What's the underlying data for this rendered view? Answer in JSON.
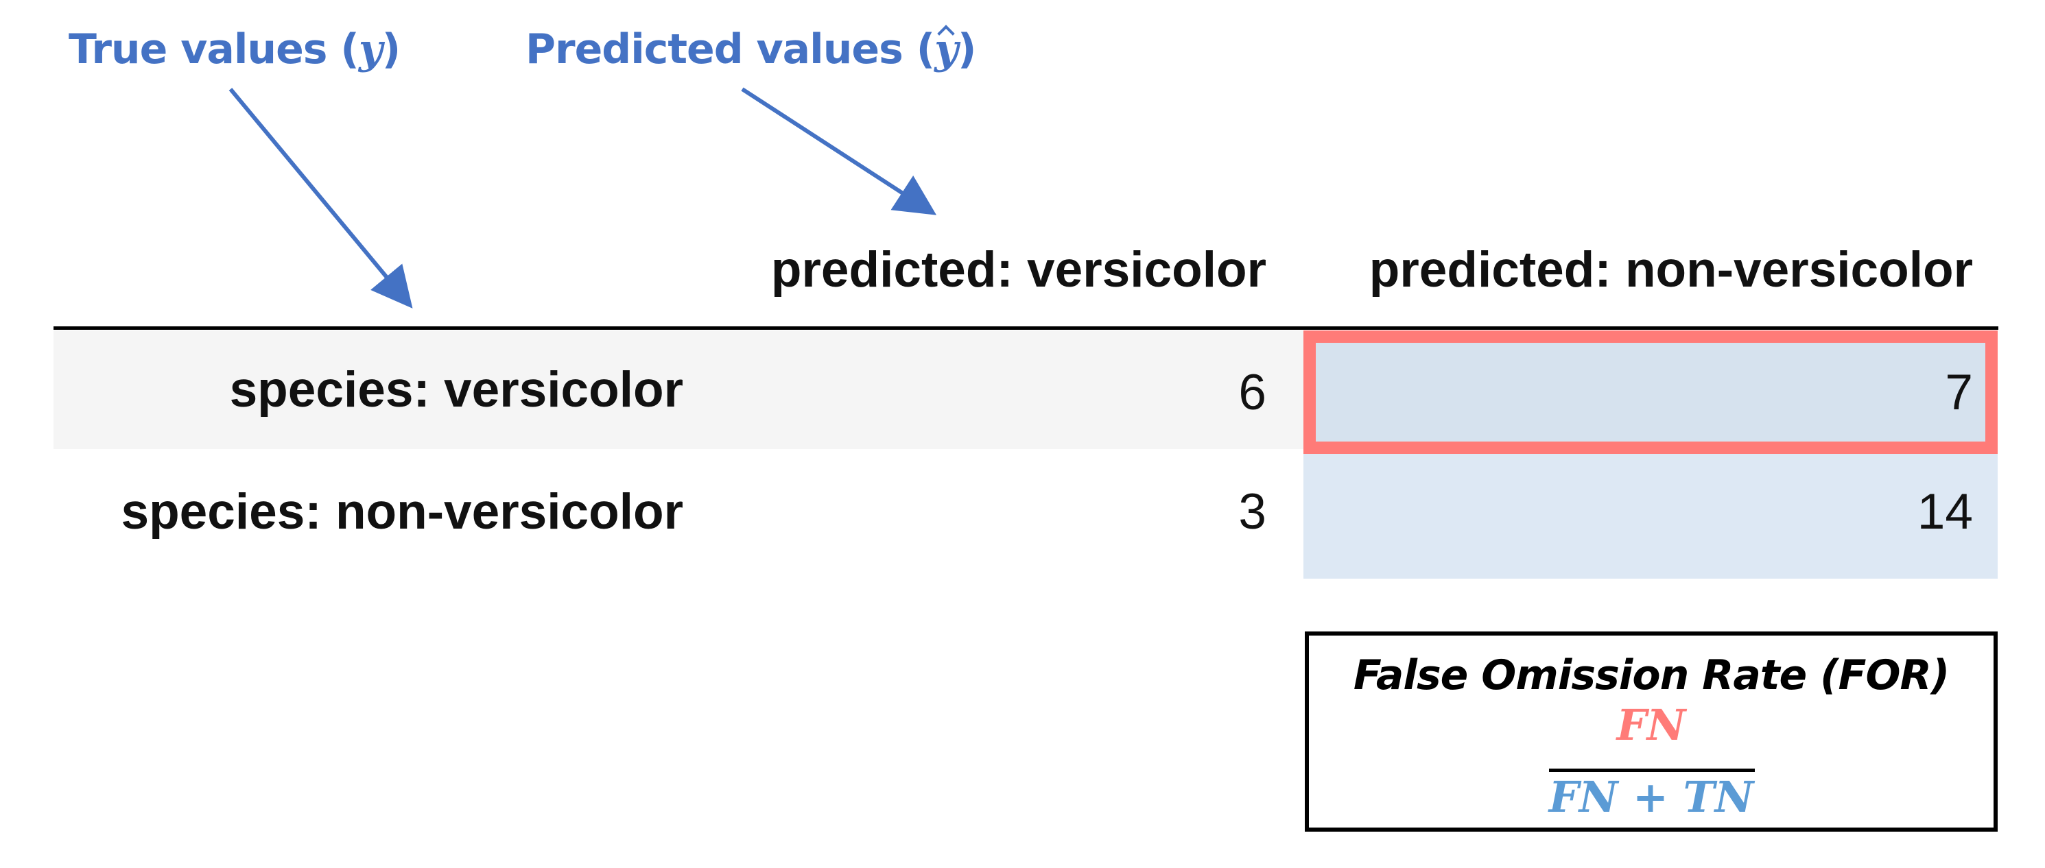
{
  "annotations": {
    "true_values": {
      "prefix": "True values (",
      "symbol": "y",
      "suffix": ")"
    },
    "predicted_values": {
      "prefix": "Predicted values (",
      "symbol": "y",
      "suffix": ")"
    }
  },
  "table": {
    "columns": [
      "predicted: versicolor",
      "predicted: non-versicolor"
    ],
    "rows": [
      {
        "label": "species: versicolor",
        "values": [
          "6",
          "7"
        ]
      },
      {
        "label": "species: non-versicolor",
        "values": [
          "3",
          "14"
        ]
      }
    ]
  },
  "formula": {
    "title": "False Omission Rate (FOR)",
    "numerator": "FN",
    "denominator": "FN + TN"
  },
  "colors": {
    "annotation": "#4472C4",
    "highlight_border": "#ff7b78",
    "fn_cell": "#d6e2ee",
    "tn_cell": "#dde8f4",
    "numerator": "#ff7b78",
    "denominator": "#5b9bd5"
  }
}
